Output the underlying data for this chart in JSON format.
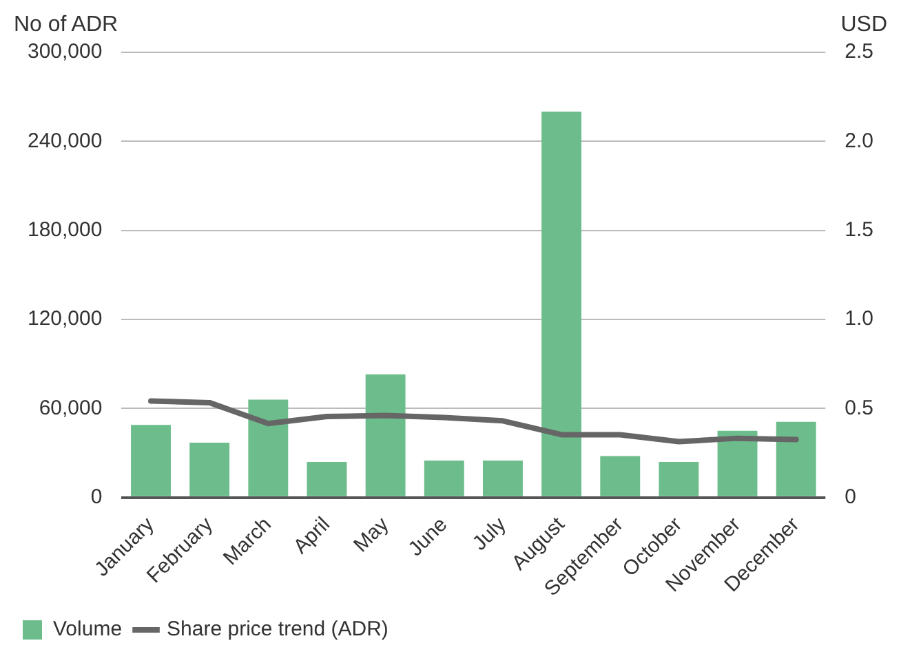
{
  "chart_data": {
    "type": "bar",
    "ylabel": "No of ADR",
    "y2label": "USD",
    "categories": [
      "January",
      "February",
      "March",
      "April",
      "May",
      "June",
      "July",
      "August",
      "September",
      "October",
      "November",
      "December"
    ],
    "series": [
      {
        "name": "Volume",
        "color": "#6dbd8c",
        "values": [
          49000,
          37000,
          66000,
          24000,
          83000,
          25000,
          25000,
          260000,
          28000,
          24000,
          45000,
          51000
        ]
      },
      {
        "name": "Share price trend (ADR)",
        "type": "line",
        "axis": "y2",
        "color": "#666666",
        "values": [
          0.542,
          0.533,
          0.416,
          0.455,
          0.461,
          0.449,
          0.431,
          0.353,
          0.353,
          0.314,
          0.333,
          0.326
        ]
      }
    ],
    "ylim": [
      0,
      300000
    ],
    "yticks": [
      {
        "value": 0,
        "label": "0"
      },
      {
        "value": 60000,
        "label": "60,000"
      },
      {
        "value": 120000,
        "label": "120,000"
      },
      {
        "value": 180000,
        "label": "180,000"
      },
      {
        "value": 240000,
        "label": "240,000"
      },
      {
        "value": 300000,
        "label": "300,000"
      }
    ],
    "y2lim": [
      0,
      2.5
    ],
    "y2ticks": [
      0,
      0.5,
      {
        "value": 1,
        "label": "1.0"
      },
      1.5,
      {
        "value": 2,
        "label": "2.0"
      },
      2.5
    ],
    "grid": "y",
    "legend": "bottom left",
    "marker": "none",
    "line_style": "solid"
  }
}
